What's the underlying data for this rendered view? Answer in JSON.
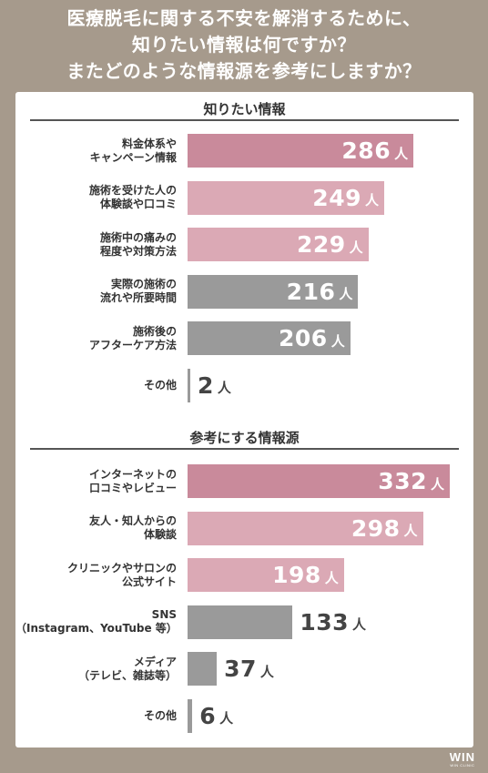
{
  "header": {
    "line1": "医療脱毛に関する不安を解消するために、",
    "line2": "知りたい情報は何ですか？",
    "line3": "またどのような情報源を参考にしますか？"
  },
  "logo": {
    "text": "WIN",
    "sub": "WIN CLINIC"
  },
  "colors": {
    "pink_top": "#c98a9b",
    "pink": "#dba9b5",
    "gray": "#9a9a9a",
    "background": "#a69a8c"
  },
  "unit": "人",
  "chart_data": [
    {
      "type": "bar",
      "orientation": "horizontal",
      "title": "知りたい情報",
      "categories": [
        [
          "料金体系や",
          "キャンペーン情報"
        ],
        [
          "施術を受けた人の",
          "体験談や口コミ"
        ],
        [
          "施術中の痛みの",
          "程度や対策方法"
        ],
        [
          "実際の施術の",
          "流れや所要時間"
        ],
        [
          "施術後の",
          "アフターケア方法"
        ],
        [
          "その他"
        ]
      ],
      "values": [
        286,
        249,
        229,
        216,
        206,
        2
      ],
      "bar_colors": [
        "#c98a9b",
        "#dba9b5",
        "#dba9b5",
        "#9a9a9a",
        "#9a9a9a",
        "#9a9a9a"
      ],
      "value_inside": [
        true,
        true,
        true,
        true,
        true,
        false
      ]
    },
    {
      "type": "bar",
      "orientation": "horizontal",
      "title": "参考にする情報源",
      "categories": [
        [
          "インターネットの",
          "口コミやレビュー"
        ],
        [
          "友人・知人からの",
          "体験談"
        ],
        [
          "クリニックやサロンの",
          "公式サイト"
        ],
        [
          "SNS",
          "（Instagram、YouTube 等）"
        ],
        [
          "メディア",
          "（テレビ、雑誌等）"
        ],
        [
          "その他"
        ]
      ],
      "values": [
        332,
        298,
        198,
        133,
        37,
        6
      ],
      "bar_colors": [
        "#c98a9b",
        "#dba9b5",
        "#dba9b5",
        "#9a9a9a",
        "#9a9a9a",
        "#9a9a9a"
      ],
      "value_inside": [
        true,
        true,
        true,
        false,
        false,
        false
      ]
    }
  ]
}
